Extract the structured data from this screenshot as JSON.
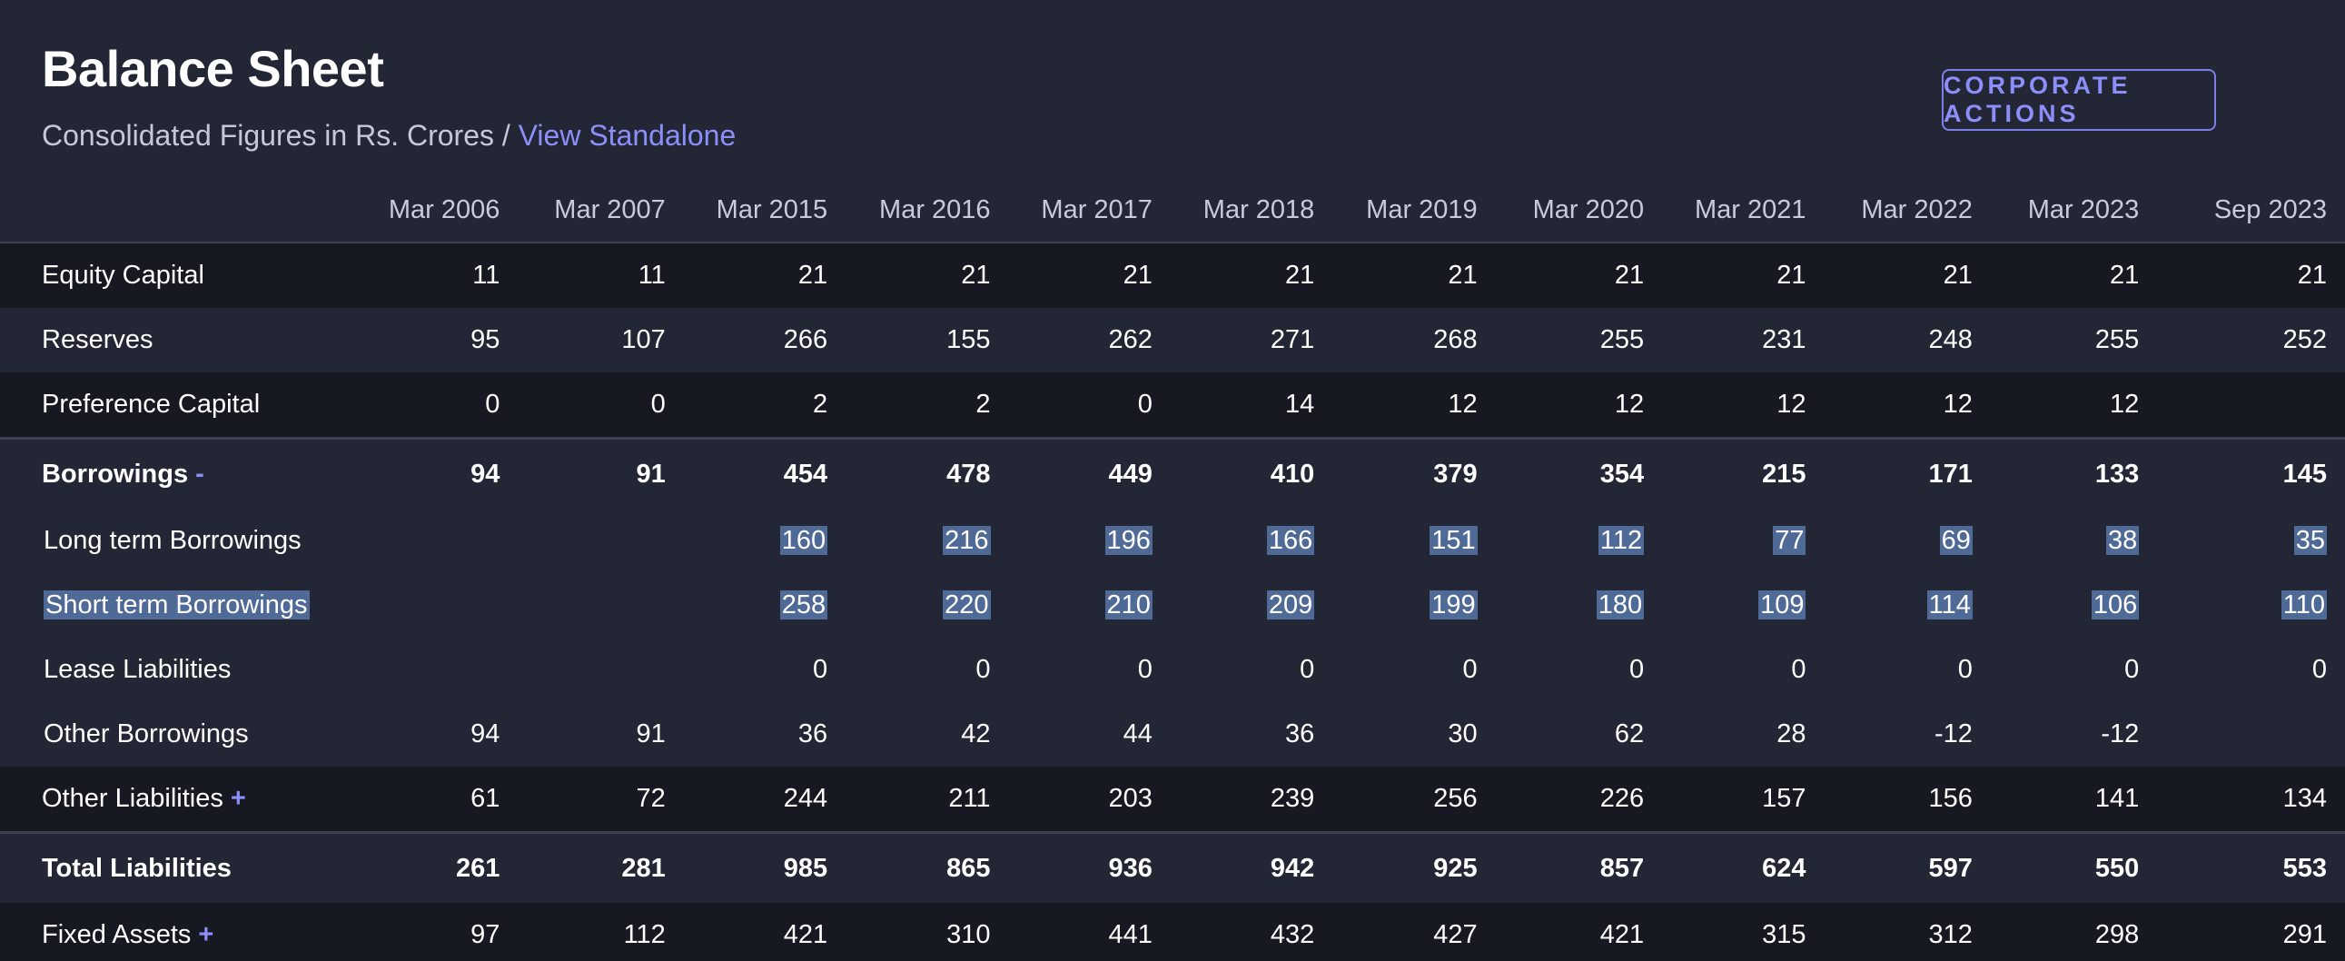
{
  "header": {
    "title": "Balance Sheet",
    "subtitle_prefix": "Consolidated Figures in Rs. Crores / ",
    "subtitle_link": "View Standalone"
  },
  "actions": {
    "corporate_actions_label": "CORPORATE ACTIONS"
  },
  "columns": [
    "Mar 2006",
    "Mar 2007",
    "Mar 2015",
    "Mar 2016",
    "Mar 2017",
    "Mar 2018",
    "Mar 2019",
    "Mar 2020",
    "Mar 2021",
    "Mar 2022",
    "Mar 2023",
    "Sep 2023"
  ],
  "rows": [
    {
      "label": "Equity Capital",
      "values": [
        "11",
        "11",
        "21",
        "21",
        "21",
        "21",
        "21",
        "21",
        "21",
        "21",
        "21",
        "21"
      ]
    },
    {
      "label": "Reserves",
      "values": [
        "95",
        "107",
        "266",
        "155",
        "262",
        "271",
        "268",
        "255",
        "231",
        "248",
        "255",
        "252"
      ]
    },
    {
      "label": "Preference Capital",
      "values": [
        "0",
        "0",
        "2",
        "2",
        "0",
        "14",
        "12",
        "12",
        "12",
        "12",
        "12",
        ""
      ]
    },
    {
      "label": "Borrowings",
      "toggle": "-",
      "values": [
        "94",
        "91",
        "454",
        "478",
        "449",
        "410",
        "379",
        "354",
        "215",
        "171",
        "133",
        "145"
      ]
    },
    {
      "label": "Long term Borrowings",
      "values": [
        "",
        "",
        "160",
        "216",
        "196",
        "166",
        "151",
        "112",
        "77",
        "69",
        "38",
        "35"
      ]
    },
    {
      "label": "Short term Borrowings",
      "values": [
        "",
        "",
        "258",
        "220",
        "210",
        "209",
        "199",
        "180",
        "109",
        "114",
        "106",
        "110"
      ]
    },
    {
      "label": "Lease Liabilities",
      "values": [
        "",
        "",
        "0",
        "0",
        "0",
        "0",
        "0",
        "0",
        "0",
        "0",
        "0",
        "0"
      ]
    },
    {
      "label": "Other Borrowings",
      "values": [
        "94",
        "91",
        "36",
        "42",
        "44",
        "36",
        "30",
        "62",
        "28",
        "-12",
        "-12",
        ""
      ]
    },
    {
      "label": "Other Liabilities",
      "toggle": "+",
      "values": [
        "61",
        "72",
        "244",
        "211",
        "203",
        "239",
        "256",
        "226",
        "157",
        "156",
        "141",
        "134"
      ]
    },
    {
      "label": "Total Liabilities",
      "values": [
        "261",
        "281",
        "985",
        "865",
        "936",
        "942",
        "925",
        "857",
        "624",
        "597",
        "550",
        "553"
      ]
    },
    {
      "label": "Fixed Assets",
      "toggle": "+",
      "values": [
        "97",
        "112",
        "421",
        "310",
        "441",
        "432",
        "427",
        "421",
        "315",
        "312",
        "298",
        "291"
      ]
    }
  ],
  "colors": {
    "background": "#232634",
    "row_dark": "#171922",
    "accent": "#8c8ffa",
    "selection": "#4f6a96"
  }
}
